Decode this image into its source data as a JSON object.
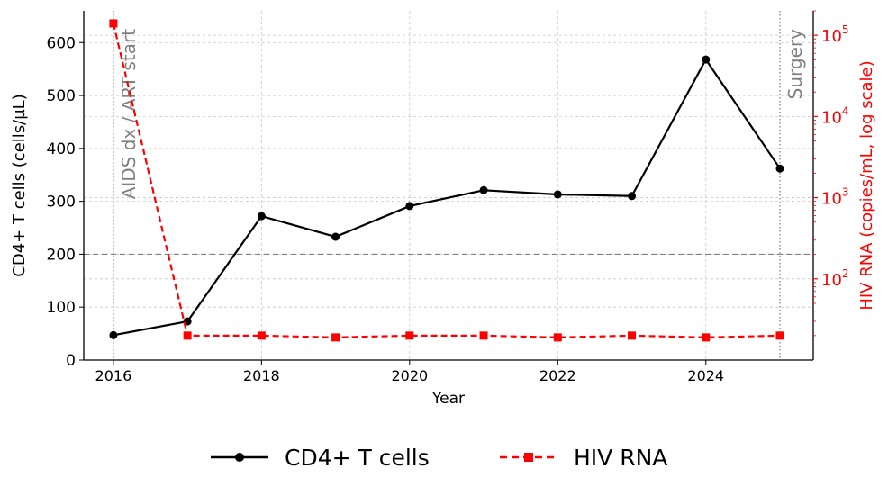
{
  "chart_data": {
    "type": "line",
    "xlabel": "Year",
    "xlim": [
      2015.6,
      2025.45
    ],
    "xticks": [
      2016,
      2018,
      2020,
      2022,
      2024
    ],
    "y_left": {
      "label": "CD4+ T cells (cells/µL)",
      "lim": [
        0,
        660
      ],
      "ticks": [
        0,
        100,
        200,
        300,
        400,
        500,
        600
      ],
      "color": "#000000"
    },
    "y_right": {
      "label": "HIV RNA (copies/mL, log scale)",
      "scale": "log",
      "lim": [
        10,
        200000
      ],
      "ticks": [
        100,
        1000,
        10000,
        100000
      ],
      "tick_labels": [
        {
          "base": "10",
          "exp": "2"
        },
        {
          "base": "10",
          "exp": "3"
        },
        {
          "base": "10",
          "exp": "4"
        },
        {
          "base": "10",
          "exp": "5"
        }
      ],
      "color": "#ff0000"
    },
    "series": [
      {
        "name": "CD4+ T cells",
        "axis": "left",
        "color": "#000000",
        "line_style": "solid",
        "marker": "circle",
        "x": [
          2016,
          2017,
          2018,
          2019,
          2020,
          2021,
          2022,
          2023,
          2024,
          2025
        ],
        "values": [
          47,
          73,
          272,
          233,
          291,
          321,
          313,
          310,
          568,
          362
        ]
      },
      {
        "name": "HIV RNA",
        "axis": "right",
        "color": "#ff0000",
        "line_style": "dashed",
        "marker": "square",
        "x": [
          2016,
          2017,
          2018,
          2019,
          2020,
          2021,
          2022,
          2023,
          2024,
          2025
        ],
        "values": [
          140000,
          20,
          20,
          19,
          20,
          20,
          19,
          20,
          19,
          20
        ]
      }
    ],
    "reference_line": {
      "axis": "left",
      "value": 200,
      "style": "dashed",
      "color": "#808080"
    },
    "annotations": [
      {
        "x": 2016,
        "text": "AIDS dx / ART start"
      },
      {
        "x": 2025,
        "text": "Surgery"
      }
    ],
    "grid": true,
    "legend_position": "bottom-center"
  }
}
